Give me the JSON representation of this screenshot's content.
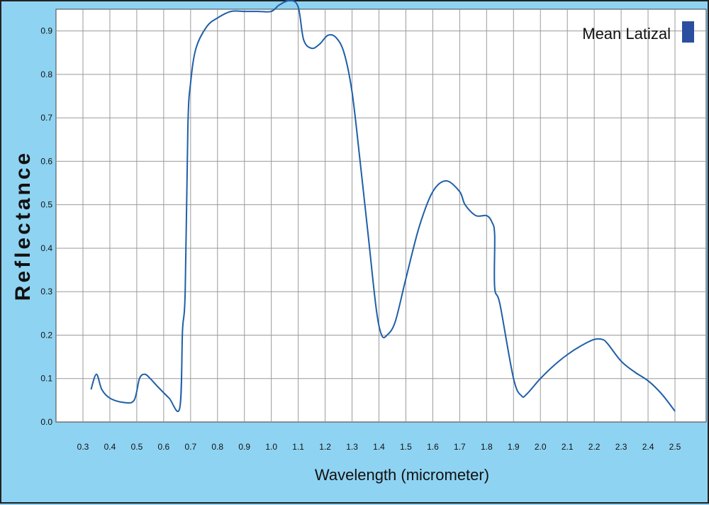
{
  "chart_data": {
    "type": "line",
    "title": "",
    "xlabel": "Wavelength (micrometer)",
    "ylabel": "Reflectance",
    "xlim": [
      0.3,
      2.5
    ],
    "ylim": [
      0.0,
      0.95
    ],
    "x_ticks": [
      "0.3",
      "0.4",
      "0.5",
      "0.6",
      "0.7",
      "0.8",
      "0.9",
      "1.0",
      "1.1",
      "1.2",
      "1.3",
      "1.4",
      "1.5",
      "1.6",
      "1.7",
      "1.8",
      "1.9",
      "2.0",
      "2.1",
      "2.2",
      "2.3",
      "2.4",
      "2.5"
    ],
    "y_ticks": [
      "0.0",
      "0.1",
      "0.2",
      "0.3",
      "0.4",
      "0.5",
      "0.6",
      "0.7",
      "0.8",
      "0.9"
    ],
    "grid": true,
    "legend_position": "top-right",
    "series": [
      {
        "name": "Mean Latizal",
        "color": "#1f5fa8",
        "legend_color": "#2b4ea0",
        "x": [
          0.33,
          0.35,
          0.37,
          0.4,
          0.45,
          0.49,
          0.51,
          0.53,
          0.55,
          0.58,
          0.62,
          0.66,
          0.67,
          0.68,
          0.69,
          0.7,
          0.72,
          0.76,
          0.8,
          0.85,
          0.9,
          0.95,
          1.0,
          1.03,
          1.07,
          1.1,
          1.12,
          1.15,
          1.18,
          1.21,
          1.24,
          1.27,
          1.3,
          1.33,
          1.36,
          1.39,
          1.41,
          1.43,
          1.46,
          1.5,
          1.55,
          1.6,
          1.65,
          1.7,
          1.72,
          1.76,
          1.8,
          1.82,
          1.83,
          1.83,
          1.85,
          1.9,
          1.93,
          1.95,
          2.0,
          2.05,
          2.1,
          2.15,
          2.2,
          2.23,
          2.25,
          2.3,
          2.35,
          2.4,
          2.45,
          2.5
        ],
        "y": [
          0.075,
          0.11,
          0.075,
          0.055,
          0.045,
          0.05,
          0.1,
          0.11,
          0.1,
          0.08,
          0.055,
          0.033,
          0.21,
          0.3,
          0.68,
          0.78,
          0.86,
          0.91,
          0.93,
          0.945,
          0.945,
          0.945,
          0.945,
          0.96,
          0.97,
          0.955,
          0.88,
          0.86,
          0.87,
          0.89,
          0.885,
          0.85,
          0.76,
          0.6,
          0.43,
          0.26,
          0.2,
          0.2,
          0.23,
          0.33,
          0.45,
          0.53,
          0.555,
          0.53,
          0.5,
          0.475,
          0.475,
          0.46,
          0.43,
          0.31,
          0.27,
          0.1,
          0.06,
          0.065,
          0.1,
          0.13,
          0.155,
          0.175,
          0.19,
          0.19,
          0.18,
          0.14,
          0.115,
          0.095,
          0.065,
          0.025
        ]
      }
    ]
  }
}
